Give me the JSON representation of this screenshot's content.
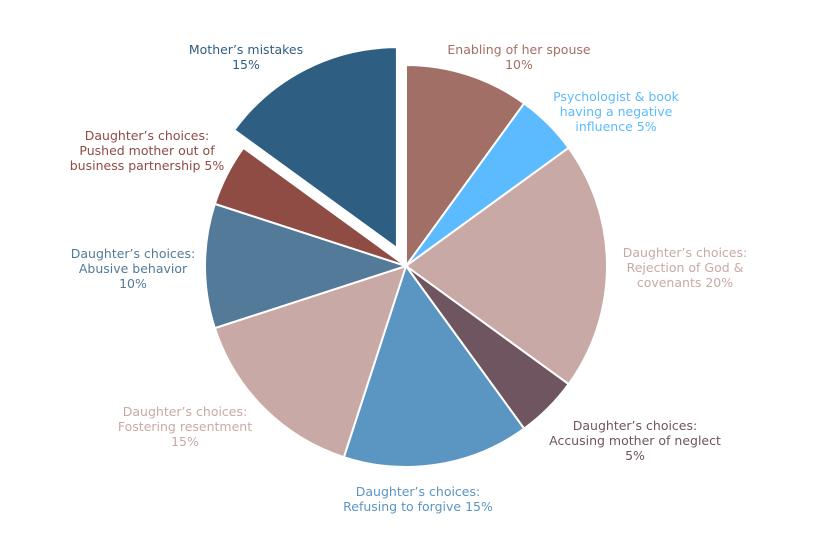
{
  "chart_data": {
    "type": "pie",
    "categories": [
      [
        "Enabling of her spouse"
      ],
      [
        "Psychologist & book",
        "having a negative",
        "influence"
      ],
      [
        "Daughter’s choices:",
        "Rejection of God &",
        "covenants"
      ],
      [
        "Daughter’s choices:",
        "Accusing mother of neglect"
      ],
      [
        "Daughter’s choices:",
        "Refusing to forgive"
      ],
      [
        "Daughter’s choices:",
        "Fostering resentment"
      ],
      [
        "Daughter’s choices:",
        "Abusive behavior"
      ],
      [
        "Daughter’s choices:",
        "Pushed mother out of",
        "business partnership"
      ],
      [
        "Mother’s mistakes"
      ]
    ],
    "values": [
      10,
      5,
      20,
      5,
      15,
      15,
      10,
      5,
      15
    ],
    "value_labels": [
      "10%",
      "5%",
      "20%",
      "5%",
      "15%",
      "15%",
      "10%",
      "5%",
      "15%"
    ],
    "colors": [
      "#a26f66",
      "#5cbaff",
      "#c8a9a6",
      "#6e5560",
      "#5b96c2",
      "#c8a9a6",
      "#537b99",
      "#8e4c45",
      "#2e5e82"
    ],
    "exploded": [
      8
    ]
  }
}
